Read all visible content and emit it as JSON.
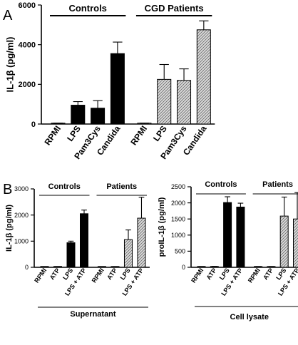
{
  "colors": {
    "solid": "#000000",
    "hatched_fill": "#d9d9d9",
    "background": "#ffffff"
  },
  "chart_data": [
    {
      "panel": "A",
      "type": "bar",
      "ylabel": "IL-1β (pg/ml)",
      "ylim": [
        0,
        6000
      ],
      "yticks": [
        0,
        2000,
        4000,
        6000
      ],
      "categories": [
        "RPMI",
        "LPS",
        "Pam3Cys",
        "Candida",
        "RPMI",
        "LPS",
        "Pam3Cys",
        "Candida"
      ],
      "values": [
        30,
        950,
        800,
        3550,
        30,
        2250,
        2200,
        4750
      ],
      "errors": [
        15,
        180,
        380,
        580,
        15,
        750,
        580,
        450
      ],
      "styles": [
        "solid",
        "solid",
        "solid",
        "solid",
        "hatched",
        "hatched",
        "hatched",
        "hatched"
      ],
      "groups": [
        {
          "label": "Controls",
          "from": 0,
          "to": 3
        },
        {
          "label": "CGD Patients",
          "from": 4,
          "to": 7
        }
      ]
    },
    {
      "panel": "B",
      "type": "bar",
      "ylabel": "IL-1β (pg/ml)",
      "ylim": [
        0,
        3000
      ],
      "yticks": [
        0,
        1000,
        2000,
        3000
      ],
      "categories": [
        "RPMI",
        "ATP",
        "LPS",
        "LPS + ATP",
        "RPMI",
        "ATP",
        "LPS",
        "LPS + ATP"
      ],
      "values": [
        15,
        20,
        940,
        2050,
        15,
        15,
        1060,
        1880
      ],
      "errors": [
        8,
        8,
        60,
        140,
        8,
        8,
        370,
        800
      ],
      "styles": [
        "solid",
        "solid",
        "solid",
        "solid",
        "hatched",
        "hatched",
        "hatched",
        "hatched"
      ],
      "groups": [
        {
          "label": "Controls",
          "from": 0,
          "to": 3
        },
        {
          "label": "Patients",
          "from": 4,
          "to": 7
        }
      ],
      "footer": "Supernatant"
    },
    {
      "type": "bar",
      "ylabel": "proIL-1β (pg/ml)",
      "ylim": [
        0,
        2500
      ],
      "yticks": [
        0,
        500,
        1000,
        1500,
        2000,
        2500
      ],
      "categories": [
        "RPMI",
        "ATP",
        "LPS",
        "LPS + ATP",
        "RPMI",
        "ATP",
        "LPS",
        "LPS + ATP"
      ],
      "values": [
        15,
        20,
        2010,
        1870,
        15,
        15,
        1590,
        1500
      ],
      "errors": [
        8,
        8,
        180,
        120,
        8,
        8,
        590,
        820
      ],
      "styles": [
        "solid",
        "solid",
        "solid",
        "solid",
        "hatched",
        "hatched",
        "hatched",
        "hatched"
      ],
      "groups": [
        {
          "label": "Controls",
          "from": 0,
          "to": 3
        },
        {
          "label": "Patients",
          "from": 4,
          "to": 7
        }
      ],
      "footer": "Cell lysate"
    }
  ]
}
